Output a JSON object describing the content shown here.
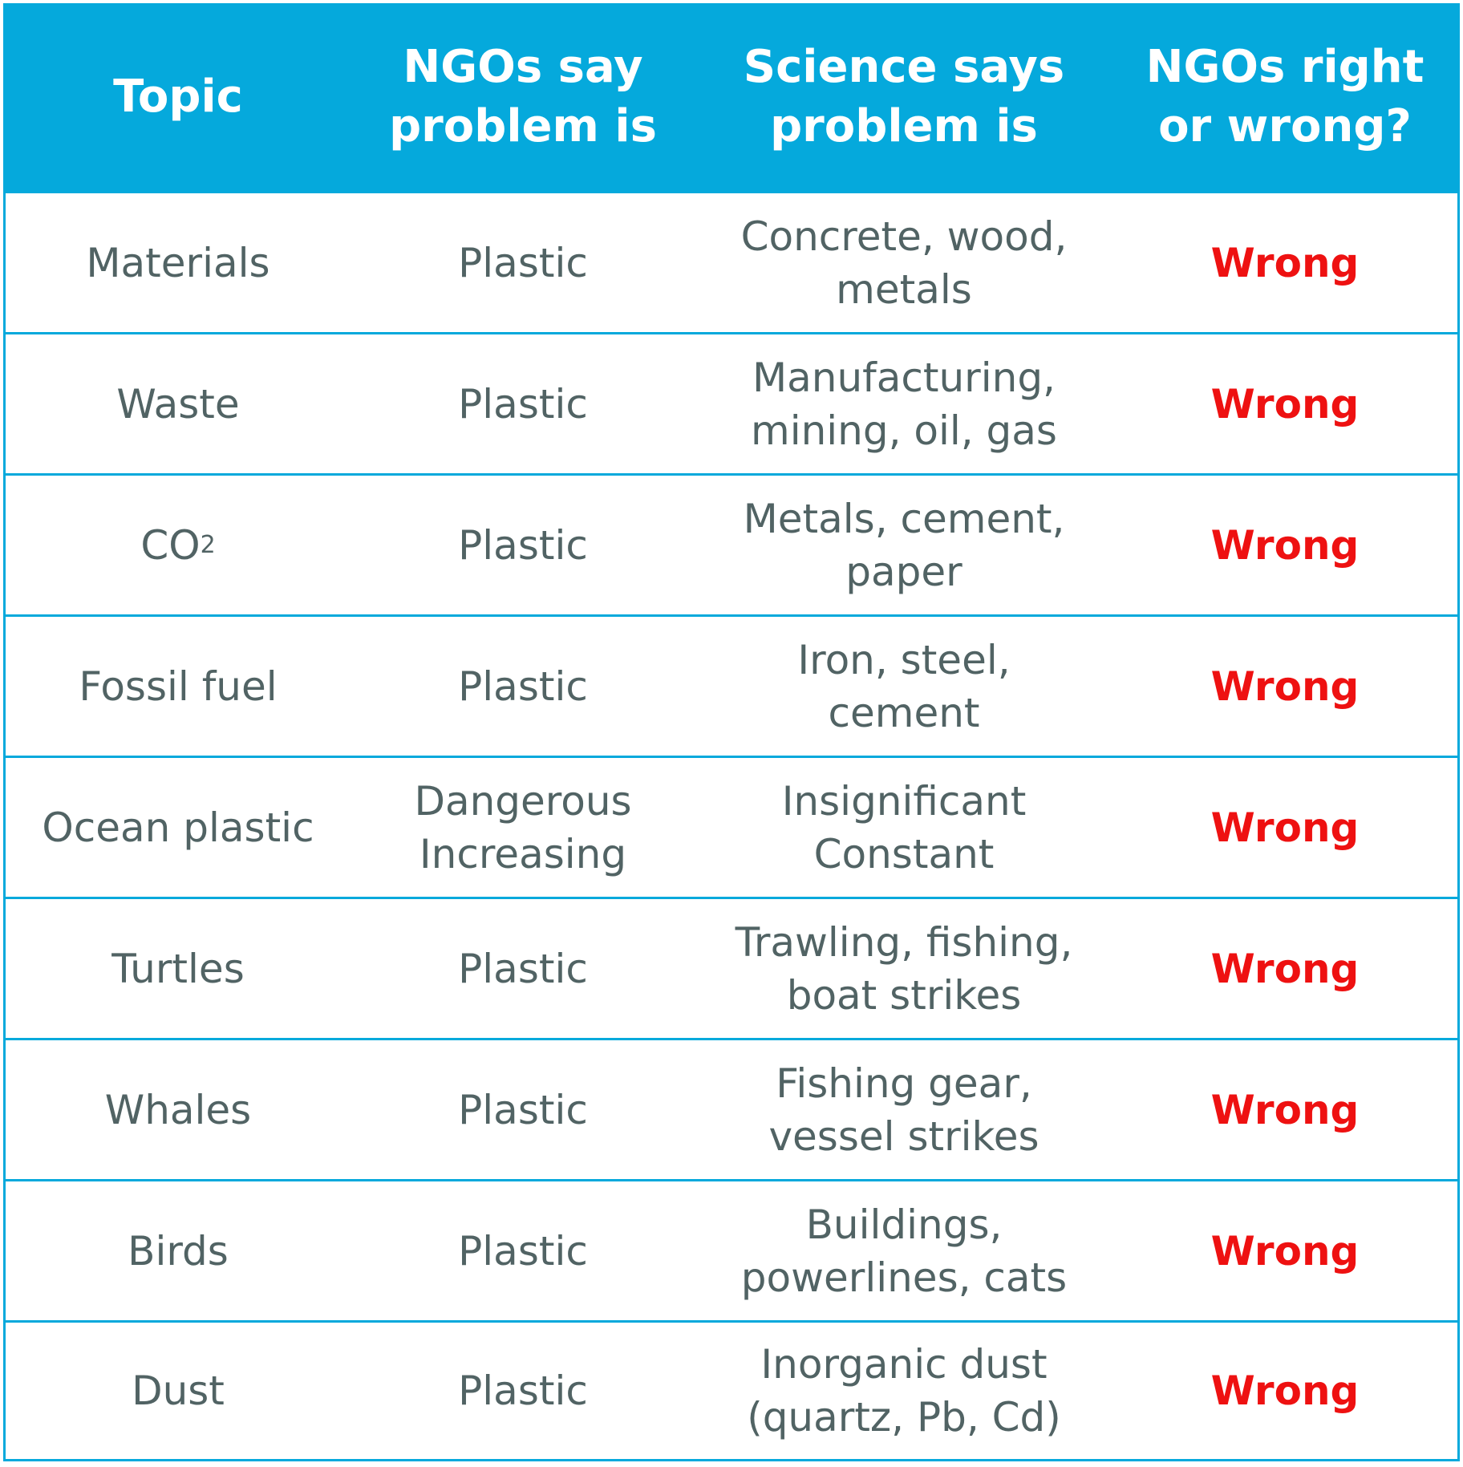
{
  "header": {
    "topic": "Topic",
    "ngos_say": "NGOs say\nproblem is",
    "science_says": "Science says\nproblem is",
    "verdict": "NGOs right\nor wrong?"
  },
  "rows": [
    {
      "topic": "Materials",
      "ngos": "Plastic",
      "science": "Concrete, wood,\nmetals",
      "verdict": "Wrong"
    },
    {
      "topic": "Waste",
      "ngos": "Plastic",
      "science": "Manufacturing,\nmining, oil, gas",
      "verdict": "Wrong"
    },
    {
      "topic": "CO",
      "topic_sub": "2",
      "ngos": "Plastic",
      "science": "Metals, cement,\npaper",
      "verdict": "Wrong"
    },
    {
      "topic": "Fossil fuel",
      "ngos": "Plastic",
      "science": "Iron, steel,\ncement",
      "verdict": "Wrong"
    },
    {
      "topic": "Ocean plastic",
      "ngos": "Dangerous\nIncreasing",
      "science": "Insignificant\nConstant",
      "verdict": "Wrong"
    },
    {
      "topic": "Turtles",
      "ngos": "Plastic",
      "science": "Trawling, fishing,\nboat strikes",
      "verdict": "Wrong"
    },
    {
      "topic": "Whales",
      "ngos": "Plastic",
      "science": "Fishing gear,\nvessel strikes",
      "verdict": "Wrong"
    },
    {
      "topic": "Birds",
      "ngos": "Plastic",
      "science": "Buildings,\npowerlines, cats",
      "verdict": "Wrong"
    },
    {
      "topic": "Dust",
      "ngos": "Plastic",
      "science": "Inorganic dust\n(quartz, Pb, Cd)",
      "verdict": "Wrong"
    }
  ],
  "colors": {
    "header_bg": "#05a9dc",
    "body_text": "#516364",
    "wrong_text": "#ee1111"
  }
}
